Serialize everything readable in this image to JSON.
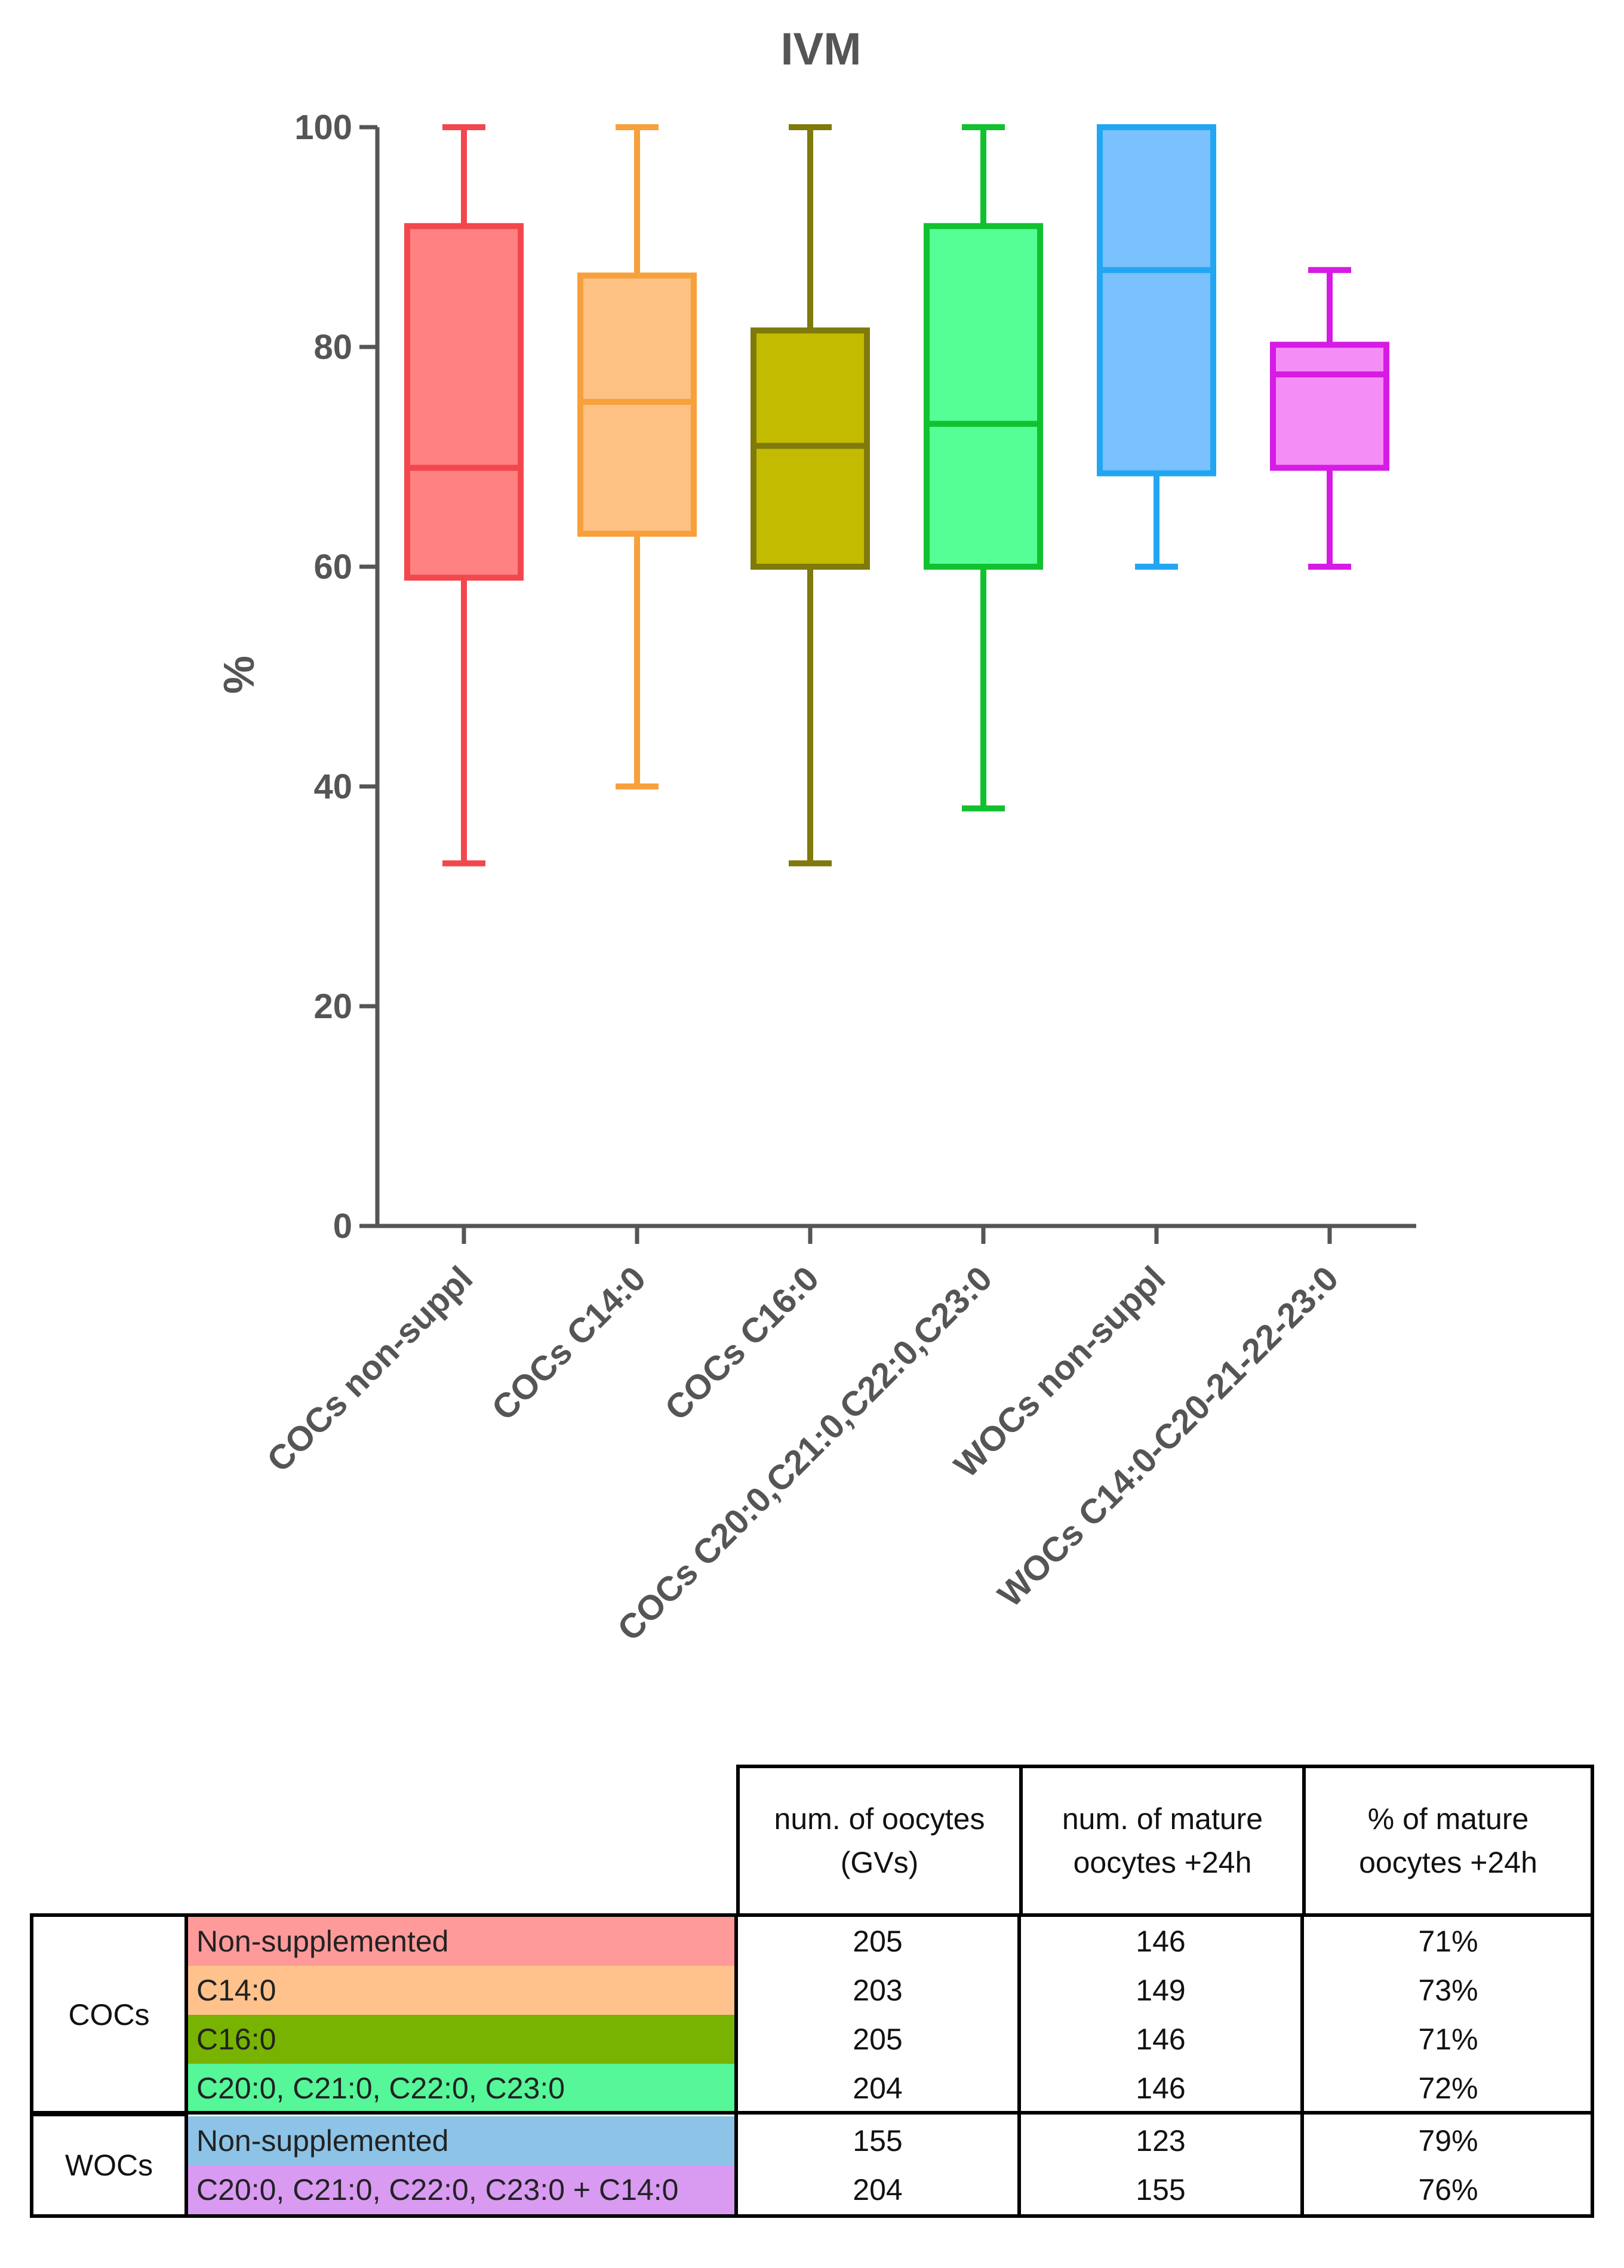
{
  "chart_data": {
    "type": "box",
    "title": "IVM",
    "ylabel": "%",
    "xlabel": "",
    "ylim": [
      0,
      100
    ],
    "yticks": [
      0,
      20,
      40,
      60,
      80,
      100
    ],
    "categories": [
      "COCs non-suppl",
      "COCs C14:0",
      "COCs C16:0",
      "COCs C20:0,C21:0,C22:0,C23:0",
      "WOCs non-suppl",
      "WOCs C14:0-C20-21-22-23:0"
    ],
    "boxes": [
      {
        "min": 33,
        "q1": 59,
        "median": 69,
        "q3": 91,
        "max": 100
      },
      {
        "min": 40,
        "q1": 63,
        "median": 75,
        "q3": 86.5,
        "max": 100
      },
      {
        "min": 33,
        "q1": 60,
        "median": 71,
        "q3": 81.5,
        "max": 100
      },
      {
        "min": 38,
        "q1": 60,
        "median": 73,
        "q3": 91,
        "max": 100
      },
      {
        "min": 60,
        "q1": 68.5,
        "median": 87,
        "q3": 100,
        "max": 100
      },
      {
        "min": 60,
        "q1": 69,
        "median": 77.5,
        "q3": 80.2,
        "max": 87
      }
    ],
    "box_colors": [
      {
        "stroke": "#F2474D",
        "fill": "#FF8181"
      },
      {
        "stroke": "#F7A03C",
        "fill": "#FDC183"
      },
      {
        "stroke": "#7F7A0B",
        "fill": "#C2BB00"
      },
      {
        "stroke": "#11C12F",
        "fill": "#56FF96"
      },
      {
        "stroke": "#22A6F2",
        "fill": "#7AC1FD"
      },
      {
        "stroke": "#D61BE4",
        "fill": "#F58DF7"
      }
    ]
  },
  "table": {
    "headers": [
      [
        "num. of oocytes",
        "(GVs)"
      ],
      [
        "num. of mature",
        "oocytes +24h"
      ],
      [
        "% of mature",
        "oocytes +24h"
      ]
    ],
    "groups": [
      {
        "label": "COCs",
        "rows": [
          {
            "condition": "Non-supplemented",
            "color": "#FF9A9A",
            "oocytes": "205",
            "mature": "146",
            "pct": "71%"
          },
          {
            "condition": "C14:0",
            "color": "#FFC28C",
            "oocytes": "203",
            "mature": "149",
            "pct": "73%"
          },
          {
            "condition": "C16:0",
            "color": "#77B300",
            "oocytes": "205",
            "mature": "146",
            "pct": "71%"
          },
          {
            "condition": "C20:0, C21:0, C22:0, C23:0",
            "color": "#55F799",
            "oocytes": "204",
            "mature": "146",
            "pct": "72%"
          }
        ]
      },
      {
        "label": "WOCs",
        "rows": [
          {
            "condition": "Non-supplemented",
            "color": "#8CC3E6",
            "oocytes": "155",
            "mature": "123",
            "pct": "79%"
          },
          {
            "condition": "C20:0, C21:0, C22:0, C23:0 + C14:0",
            "color": "#D99AF2",
            "oocytes": "204",
            "mature": "155",
            "pct": "76%"
          }
        ]
      }
    ]
  }
}
